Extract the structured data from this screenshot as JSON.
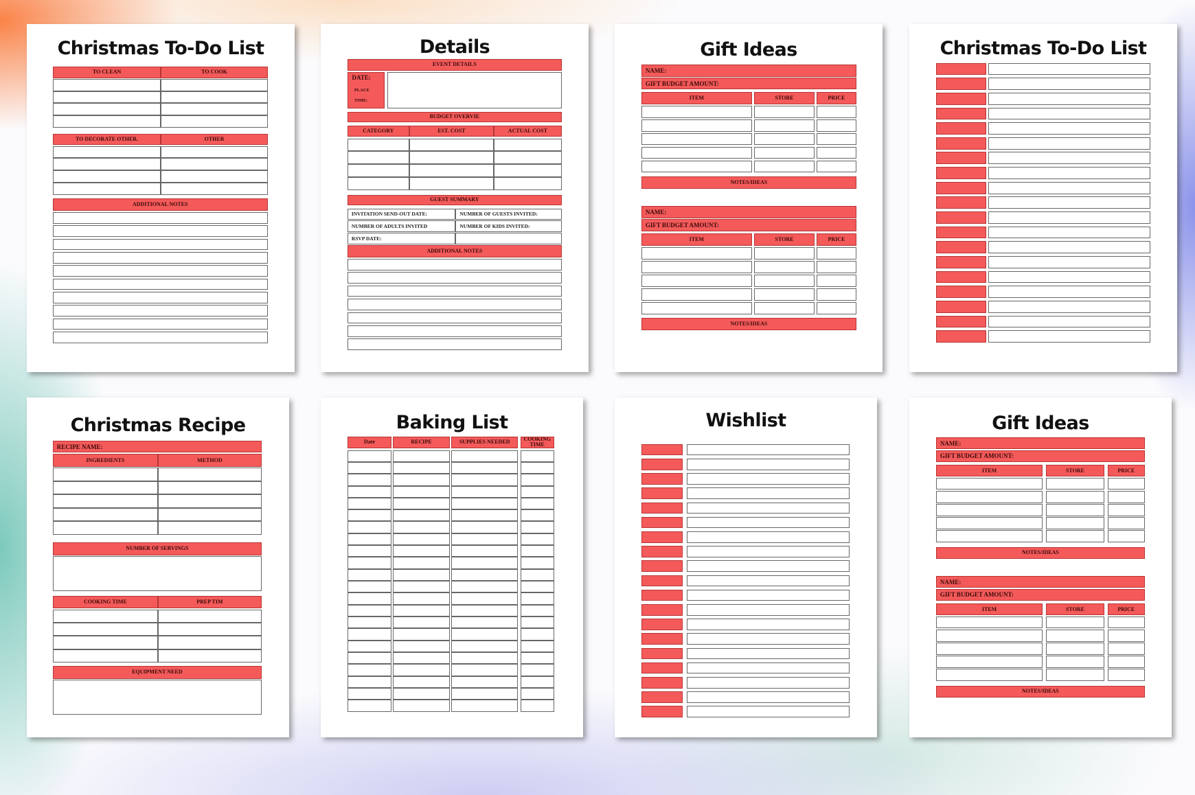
{
  "pages": [
    {
      "title": "Christmas To-Do List",
      "labels": [
        "TO CLEAN",
        "TO COOK",
        "TO DECORATE OTHER.",
        "OTHER",
        "ADDITIONAL NOTES"
      ]
    },
    {
      "title": "Details",
      "labels": [
        "EVENT DETAILS",
        "DATE:",
        "PLACE",
        "TIME:",
        "BUDGET OVERVIE",
        "CATEGORY",
        "EST. COST",
        "ACTUAL COST",
        "GUEST SUMMARY",
        "INVITATION SEND-OUT DATE:",
        "NUMBER OF GUESTS INVITED:",
        "NUMBER OF ADULTS INVITED",
        "NUMBER OF KIDS INVITED:",
        "RSVP DATE:",
        "ADDITIONAL NOTES"
      ]
    },
    {
      "title": "Gift Ideas",
      "labels": [
        "NAME:",
        "GIFT BUDGET AMOUNT:",
        "ITEM",
        "STORE",
        "PRICE",
        "NOTES/IDEAS",
        "NAME:",
        "GIFT BUDGET AMOUNT:",
        "ITEM",
        "STORE",
        "PRICE",
        "NOTES/IDEAS"
      ]
    },
    {
      "title": "Christmas To-Do List"
    },
    {
      "title": "Christmas Recipe",
      "labels": [
        "RECIPE NAME:",
        "INGREDIENTS",
        "METHOD",
        "NUMBER OF SERVINGS",
        "COOKING TIME",
        "PREP TIM",
        "EQUIPMENT NEED"
      ]
    },
    {
      "title": "Baking List",
      "labels": [
        "Date",
        "RECIPE",
        "SUPPLIES NEEDED",
        "COOKING TIME"
      ]
    },
    {
      "title": "Wishlist"
    },
    {
      "title": "Gift Ideas",
      "labels": [
        "NAME:",
        "GIFT BUDGET AMOUNT:",
        "ITEM",
        "STORE",
        "PRICE",
        "NOTES/IDEAS",
        "NAME:",
        "GIFT BUDGET AMOUNT:",
        "ITEM",
        "STORE",
        "PRICE",
        "NOTES/IDEAS"
      ]
    }
  ]
}
